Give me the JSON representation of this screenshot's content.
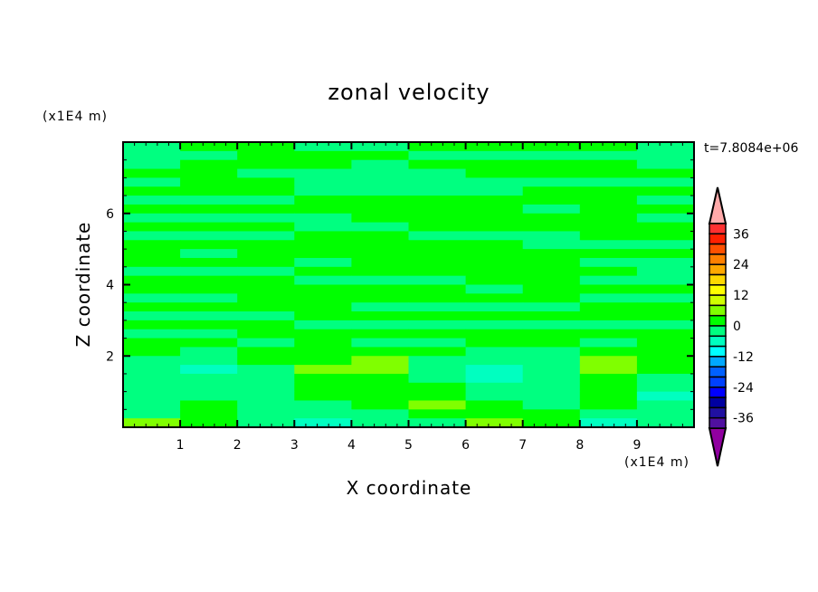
{
  "chart_data": {
    "type": "heatmap",
    "title": "zonal velocity",
    "xlabel": "X coordinate",
    "ylabel": "Z coordinate",
    "x_unit": "(x1E4 m)",
    "y_unit": "(x1E4 m)",
    "time_label": "t=7.8084e+06",
    "xlim": [
      0,
      10
    ],
    "ylim": [
      0,
      8
    ],
    "x_ticks": [
      1,
      2,
      3,
      4,
      5,
      6,
      7,
      8,
      9
    ],
    "y_ticks": [
      2,
      4,
      6
    ],
    "grid_x_step": 1,
    "grid_z_step": 0.25,
    "values_top_to_bottom": [
      [
        -2,
        2,
        2,
        -2,
        -2,
        2,
        2,
        2,
        2,
        -2
      ],
      [
        -2,
        -2,
        2,
        2,
        2,
        -2,
        -2,
        -2,
        -2,
        -2
      ],
      [
        -2,
        2,
        2,
        2,
        -2,
        2,
        2,
        2,
        2,
        -2
      ],
      [
        2,
        2,
        -2,
        -2,
        -2,
        -2,
        2,
        2,
        2,
        2
      ],
      [
        -2,
        2,
        2,
        -2,
        -2,
        -2,
        -2,
        -2,
        -2,
        -2
      ],
      [
        2,
        2,
        2,
        -2,
        -2,
        -2,
        -2,
        2,
        2,
        2
      ],
      [
        -2,
        -2,
        -2,
        2,
        2,
        2,
        2,
        2,
        2,
        -2
      ],
      [
        2,
        2,
        2,
        2,
        2,
        2,
        2,
        -2,
        2,
        2
      ],
      [
        -2,
        -2,
        -2,
        -2,
        2,
        2,
        2,
        2,
        2,
        -2
      ],
      [
        2,
        2,
        2,
        -2,
        -2,
        2,
        2,
        2,
        2,
        2
      ],
      [
        -2,
        -2,
        -2,
        2,
        2,
        -2,
        -2,
        -2,
        2,
        2
      ],
      [
        2,
        2,
        2,
        2,
        2,
        2,
        2,
        -2,
        -2,
        -2
      ],
      [
        2,
        -2,
        2,
        2,
        2,
        2,
        2,
        2,
        2,
        2
      ],
      [
        2,
        2,
        2,
        -2,
        2,
        2,
        2,
        2,
        -2,
        -2
      ],
      [
        -2,
        -2,
        -2,
        2,
        2,
        2,
        2,
        2,
        2,
        -2
      ],
      [
        2,
        2,
        2,
        -2,
        -2,
        -2,
        2,
        2,
        -2,
        -2
      ],
      [
        2,
        2,
        2,
        2,
        2,
        2,
        -2,
        2,
        2,
        2
      ],
      [
        -2,
        -2,
        2,
        2,
        2,
        2,
        2,
        2,
        -2,
        -2
      ],
      [
        2,
        2,
        2,
        2,
        -2,
        -2,
        -2,
        -2,
        2,
        2
      ],
      [
        -2,
        -2,
        -2,
        2,
        2,
        2,
        2,
        2,
        2,
        2
      ],
      [
        2,
        2,
        2,
        -2,
        -2,
        -2,
        -2,
        -2,
        -2,
        -2
      ],
      [
        -2,
        -2,
        2,
        2,
        2,
        2,
        2,
        2,
        2,
        2
      ],
      [
        2,
        2,
        -2,
        2,
        -2,
        -2,
        2,
        2,
        -2,
        2
      ],
      [
        2,
        -2,
        2,
        2,
        2,
        2,
        -2,
        -2,
        2,
        2
      ],
      [
        -2,
        -2,
        2,
        2,
        6,
        -2,
        -2,
        -2,
        6,
        2
      ],
      [
        -2,
        -6,
        -2,
        6,
        6,
        -2,
        -6,
        -2,
        6,
        2
      ],
      [
        -2,
        -2,
        -2,
        2,
        2,
        -2,
        -6,
        -2,
        2,
        -2
      ],
      [
        -2,
        -2,
        -2,
        2,
        2,
        2,
        -2,
        -2,
        2,
        -2
      ],
      [
        -2,
        -2,
        -2,
        2,
        2,
        2,
        -2,
        -2,
        2,
        -6
      ],
      [
        -2,
        2,
        -2,
        -2,
        2,
        6,
        2,
        -2,
        2,
        -2
      ],
      [
        -2,
        2,
        -2,
        -2,
        -2,
        2,
        2,
        2,
        -2,
        -2
      ],
      [
        6,
        2,
        -2,
        -6,
        -2,
        -2,
        6,
        2,
        -6,
        -2
      ]
    ],
    "colorbar": {
      "levels_min": -40,
      "levels_max": 40,
      "level_step": 4,
      "labels": [
        "36",
        "24",
        "12",
        "0",
        "-12",
        "-24",
        "-36"
      ],
      "label_values": [
        36,
        24,
        12,
        0,
        -12,
        -24,
        -36
      ],
      "colors_top_to_bottom": [
        "#ff3030",
        "#ff2000",
        "#ff5000",
        "#ff8000",
        "#ffa800",
        "#ffd800",
        "#ffff00",
        "#d0ff00",
        "#80ff00",
        "#00ff00",
        "#00ff80",
        "#00ffc0",
        "#00ffff",
        "#00a8ff",
        "#0060ff",
        "#0040ff",
        "#0000ff",
        "#0000a0",
        "#2010a0",
        "#5010a0"
      ],
      "over_color": "#ffaaaa",
      "under_color": "#9000a0"
    },
    "grid": false,
    "legend": "right"
  }
}
